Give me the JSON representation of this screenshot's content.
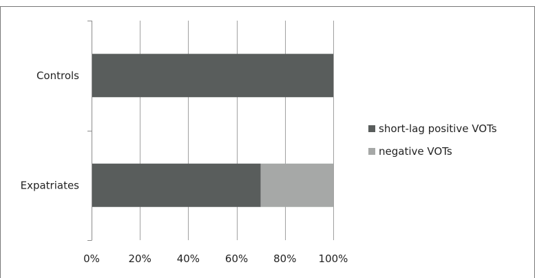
{
  "chart_data": {
    "type": "bar",
    "orientation": "horizontal",
    "stacked": "percent",
    "title": "",
    "xlabel": "",
    "ylabel": "",
    "categories": [
      "Controls",
      "Expatriates"
    ],
    "series": [
      {
        "name": "short-lag positive VOTs",
        "values": [
          100,
          70
        ],
        "color": "#595d5c"
      },
      {
        "name": "negative VOTs",
        "values": [
          0,
          30
        ],
        "color": "#a6a8a7"
      }
    ],
    "xlim": [
      0,
      100
    ],
    "xticks": [
      0,
      20,
      40,
      60,
      80,
      100
    ],
    "xtick_labels": [
      "0%",
      "20%",
      "40%",
      "60%",
      "80%",
      "100%"
    ],
    "grid": "vertical",
    "legend_position": "right"
  },
  "colors": {
    "gridline": "#a0a0a0",
    "axis": "#8a8a8a",
    "frame": "#777777",
    "text": "#222222"
  }
}
